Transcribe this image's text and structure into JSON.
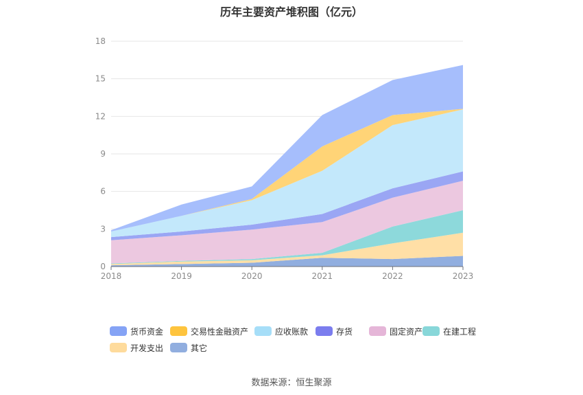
{
  "title": "历年主要资产堆积图（亿元）",
  "source": "数据来源：恒生聚源",
  "chart_data": {
    "type": "area",
    "stacked": true,
    "title": "历年主要资产堆积图（亿元）",
    "x": [
      "2018",
      "2019",
      "2020",
      "2021",
      "2022",
      "2023"
    ],
    "ylim": [
      0,
      18
    ],
    "yticks": [
      0,
      3,
      6,
      9,
      12,
      15,
      18
    ],
    "grid": true,
    "legend_position": "bottom",
    "series": [
      {
        "name": "其它",
        "color": "#91AEDF",
        "values": [
          0.1,
          0.2,
          0.3,
          0.7,
          0.6,
          0.85
        ]
      },
      {
        "name": "开发支出",
        "color": "#FFDFA6",
        "values": [
          0.1,
          0.2,
          0.2,
          0.2,
          1.25,
          1.85
        ]
      },
      {
        "name": "在建工程",
        "color": "#8DD9DB",
        "values": [
          0.05,
          0.05,
          0.1,
          0.2,
          1.35,
          1.8
        ]
      },
      {
        "name": "固定资产",
        "color": "#ECC8E0",
        "values": [
          1.85,
          2.05,
          2.35,
          2.45,
          2.3,
          2.35
        ]
      },
      {
        "name": "存货",
        "color": "#9AA6F4",
        "values": [
          0.25,
          0.3,
          0.4,
          0.65,
          0.75,
          0.75
        ]
      },
      {
        "name": "应收账款",
        "color": "#C3E8FB",
        "values": [
          0.45,
          1.25,
          1.95,
          3.45,
          5.05,
          4.95
        ]
      },
      {
        "name": "交易性金融资产",
        "color": "#FFD477",
        "values": [
          0.0,
          0.0,
          0.1,
          1.95,
          0.8,
          0.05
        ]
      },
      {
        "name": "货币资金",
        "color": "#A6BEFC",
        "values": [
          0.1,
          0.9,
          1.0,
          2.5,
          2.8,
          3.5
        ]
      }
    ],
    "legend": [
      {
        "name": "货币资金",
        "color": "#85A3F5"
      },
      {
        "name": "交易性金融资产",
        "color": "#FEC43E"
      },
      {
        "name": "应收账款",
        "color": "#A6DEF8"
      },
      {
        "name": "存货",
        "color": "#7B7DEE"
      },
      {
        "name": "固定资产",
        "color": "#E5B6D8"
      },
      {
        "name": "在建工程",
        "color": "#88D7D9"
      },
      {
        "name": "开发支出",
        "color": "#FEDB9C"
      },
      {
        "name": "其它",
        "color": "#91AEDF"
      }
    ]
  }
}
